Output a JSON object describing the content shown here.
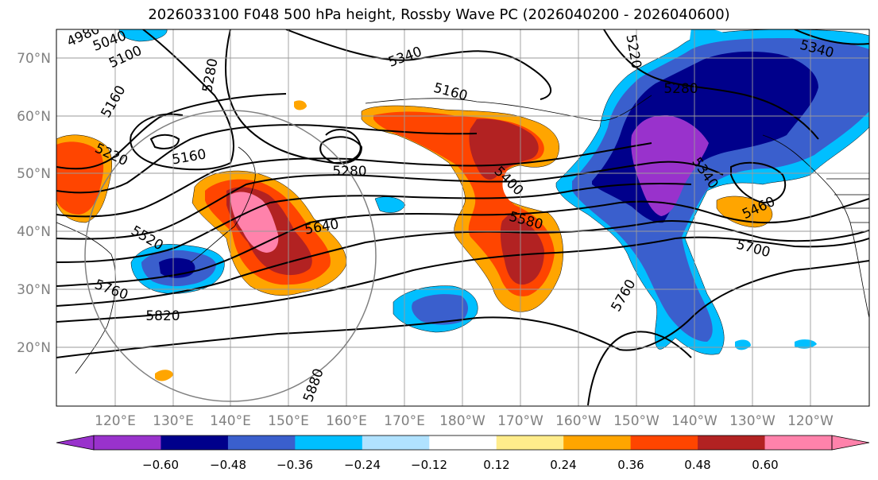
{
  "title": "2026033100 F048 500 hPa height, Rossby Wave PC (2026040200 - 2026040600)",
  "map": {
    "projection": "cylindrical (equirectangular)",
    "lat_labels": [
      "20°N",
      "30°N",
      "40°N",
      "50°N",
      "60°N",
      "70°N"
    ],
    "lon_labels": [
      "120°E",
      "130°E",
      "140°E",
      "150°E",
      "160°E",
      "170°E",
      "180°W",
      "170°W",
      "160°W",
      "150°W",
      "140°W",
      "130°W",
      "120°W"
    ],
    "gridlines": true
  },
  "height_contour_labels": [
    "4980",
    "5040",
    "5100",
    "5160",
    "5220",
    "5280",
    "5340",
    "5160",
    "5280",
    "5400",
    "5520",
    "5580",
    "5640",
    "5700",
    "5760",
    "5760",
    "5820",
    "5880",
    "5220",
    "5280",
    "5160",
    "5340",
    "5460",
    "5340"
  ],
  "colorbar": {
    "ticks": [
      "−0.60",
      "−0.48",
      "−0.36",
      "−0.24",
      "−0.12",
      "0.12",
      "0.24",
      "0.36",
      "0.48",
      "0.60"
    ],
    "colors": [
      "#9932cc",
      "#00008b",
      "#3a5fcd",
      "#00bfff",
      "#b0e2ff",
      "#ffffff",
      "#ffec8b",
      "#ffa500",
      "#ff4500",
      "#b22222",
      "#ff82ab"
    ],
    "extend": "both"
  }
}
